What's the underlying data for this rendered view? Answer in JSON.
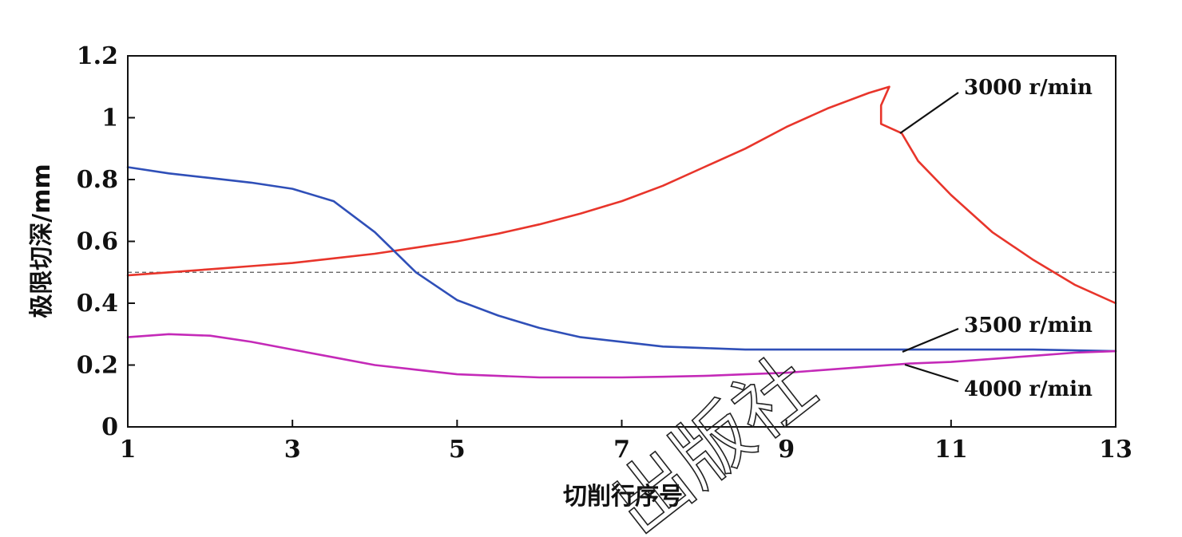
{
  "chart_data": {
    "type": "line",
    "xlabel": "切削行序号",
    "ylabel": "极限切深/mm",
    "xlim": [
      1,
      13
    ],
    "ylim": [
      0,
      1.2
    ],
    "xticks": [
      1,
      3,
      5,
      7,
      9,
      11,
      13
    ],
    "xtick_labels": [
      "1",
      "3",
      "5",
      "7",
      "9",
      "11",
      "13"
    ],
    "yticks": [
      0,
      0.2,
      0.4,
      0.6,
      0.8,
      1,
      1.2
    ],
    "ytick_labels": [
      "0",
      "0.2",
      "0.4",
      "0.6",
      "0.8",
      "1",
      "1.2"
    ],
    "grid": false,
    "reference_line": {
      "y": 0.5,
      "style": "dashed"
    },
    "series": [
      {
        "name": "3000 r/min",
        "color": "#e8352b",
        "x": [
          1,
          1.5,
          2,
          2.5,
          3,
          3.5,
          4,
          4.5,
          5,
          5.5,
          6,
          6.5,
          7,
          7.5,
          8,
          8.5,
          9,
          9.5,
          10,
          10.25,
          10.15,
          10.15,
          10.4,
          10.6,
          11,
          11.5,
          12,
          12.5,
          13
        ],
        "y": [
          0.49,
          0.5,
          0.51,
          0.52,
          0.53,
          0.545,
          0.56,
          0.58,
          0.6,
          0.625,
          0.655,
          0.69,
          0.73,
          0.78,
          0.84,
          0.9,
          0.97,
          1.03,
          1.08,
          1.1,
          1.04,
          0.98,
          0.95,
          0.86,
          0.75,
          0.63,
          0.54,
          0.46,
          0.4
        ]
      },
      {
        "name": "3500 r/min",
        "color": "#2f4fb8",
        "x": [
          1,
          1.5,
          2,
          2.5,
          3,
          3.5,
          4,
          4.5,
          5,
          5.5,
          6,
          6.5,
          7,
          7.5,
          8,
          8.5,
          9,
          10,
          11,
          12,
          13
        ],
        "y": [
          0.84,
          0.82,
          0.805,
          0.79,
          0.77,
          0.73,
          0.63,
          0.5,
          0.41,
          0.36,
          0.32,
          0.29,
          0.275,
          0.26,
          0.255,
          0.25,
          0.25,
          0.25,
          0.25,
          0.25,
          0.245
        ]
      },
      {
        "name": "4000 r/min",
        "color": "#c42ab8",
        "x": [
          1,
          1.5,
          2,
          2.5,
          3,
          3.5,
          4,
          4.5,
          5,
          5.5,
          6,
          6.5,
          7,
          7.5,
          8,
          8.5,
          9,
          9.5,
          10,
          10.5,
          11,
          11.5,
          12,
          12.5,
          13
        ],
        "y": [
          0.29,
          0.3,
          0.295,
          0.275,
          0.25,
          0.225,
          0.2,
          0.185,
          0.17,
          0.165,
          0.16,
          0.16,
          0.16,
          0.162,
          0.165,
          0.17,
          0.175,
          0.185,
          0.195,
          0.205,
          0.21,
          0.22,
          0.23,
          0.24,
          0.245
        ]
      }
    ],
    "annotations": [
      "3000 r/min",
      "3500 r/min",
      "4000 r/min"
    ]
  },
  "watermark": {
    "text": "出版社"
  }
}
